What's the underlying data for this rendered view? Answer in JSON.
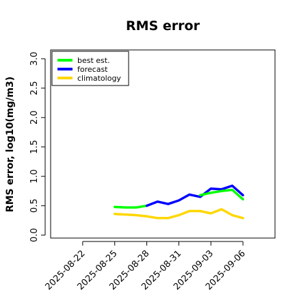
{
  "chart_data": {
    "type": "line",
    "title": "RMS error",
    "xlabel": "",
    "ylabel": "RMS error, log10(mg/m3)",
    "ylim": [
      -0.05,
      3.15
    ],
    "yticks": [
      0.0,
      0.5,
      1.0,
      1.5,
      2.0,
      2.5,
      3.0
    ],
    "ytick_labels": [
      "0.0",
      "0.5",
      "1.0",
      "1.5",
      "2.0",
      "2.5",
      "3.0"
    ],
    "xlim": [
      "2025-08-19",
      "2025-09-09"
    ],
    "xticks": [
      "2025-08-22",
      "2025-08-25",
      "2025-08-28",
      "2025-08-31",
      "2025-09-03",
      "2025-09-06"
    ],
    "highlight_tick": "2025-08-28",
    "highlight_color": "#228B22",
    "legend_position": "top-left",
    "grid": false,
    "series": [
      {
        "name": "best est.",
        "color": "#00ff00",
        "x": [
          "2025-08-25",
          "2025-08-26",
          "2025-08-27",
          "2025-08-28"
        ],
        "values": [
          0.48,
          0.47,
          0.47,
          0.5
        ]
      },
      {
        "name": "forecast",
        "color": "#0000ff",
        "x": [
          "2025-08-28",
          "2025-08-29",
          "2025-08-30",
          "2025-08-31",
          "2025-09-01",
          "2025-09-02",
          "2025-09-03",
          "2025-09-04",
          "2025-09-05",
          "2025-09-06"
        ],
        "values": [
          0.5,
          0.57,
          0.53,
          0.59,
          0.69,
          0.65,
          0.79,
          0.78,
          0.84,
          0.68
        ]
      },
      {
        "name": "best est.",
        "color": "#00ff00",
        "x": [
          "2025-09-02",
          "2025-09-03",
          "2025-09-04",
          "2025-09-05",
          "2025-09-06"
        ],
        "values": [
          0.68,
          0.72,
          0.75,
          0.77,
          0.61
        ]
      },
      {
        "name": "climatology",
        "color": "#ffd700",
        "x": [
          "2025-08-25",
          "2025-08-26",
          "2025-08-27",
          "2025-08-28",
          "2025-08-29",
          "2025-08-30",
          "2025-08-31",
          "2025-09-01",
          "2025-09-02",
          "2025-09-03",
          "2025-09-04",
          "2025-09-05",
          "2025-09-06"
        ],
        "values": [
          0.36,
          0.35,
          0.34,
          0.32,
          0.29,
          0.29,
          0.34,
          0.41,
          0.41,
          0.37,
          0.44,
          0.34,
          0.29
        ]
      }
    ],
    "legend": [
      {
        "label": "best est.",
        "color": "#00ff00"
      },
      {
        "label": "forecast",
        "color": "#0000ff"
      },
      {
        "label": "climatology",
        "color": "#ffd700"
      }
    ]
  }
}
